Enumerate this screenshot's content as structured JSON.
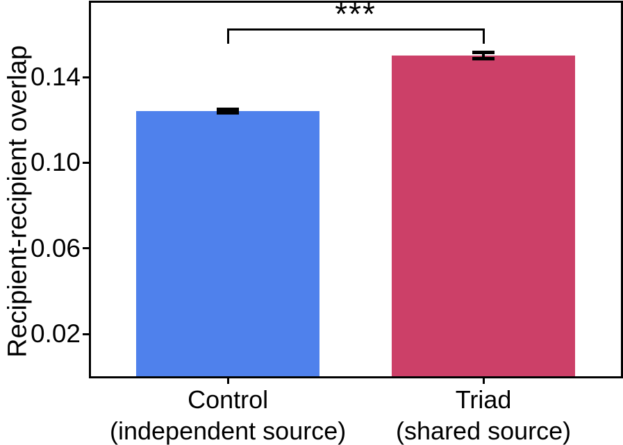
{
  "chart_data": {
    "type": "bar",
    "title": "",
    "xlabel": "",
    "ylabel": "Recipient-recipient overlap",
    "categories": [
      {
        "name": "Control",
        "sublabel": "(independent source)"
      },
      {
        "name": "Triad",
        "sublabel": "(shared source)"
      }
    ],
    "values": [
      0.124,
      0.15
    ],
    "errors": [
      0.0008,
      0.0015
    ],
    "bar_colors": [
      "#4f81ec",
      "#cc4068"
    ],
    "ylim": [
      0,
      0.175
    ],
    "yticks": [
      0.02,
      0.06,
      0.1,
      0.14
    ],
    "ytick_labels": [
      "0.02",
      "0.06",
      "0.10",
      "0.14"
    ],
    "grid": false,
    "legend": null,
    "significance": {
      "label": "***",
      "between": [
        "Control",
        "Triad"
      ]
    },
    "axis_color": "#000000",
    "text_color": "#000000",
    "background_color": "#ffffff"
  }
}
